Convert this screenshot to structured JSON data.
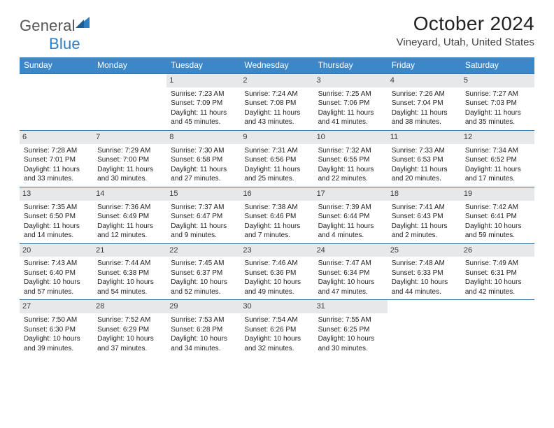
{
  "brand": {
    "name_gray": "General",
    "name_blue": "Blue"
  },
  "title": {
    "month": "October 2024",
    "location": "Vineyard, Utah, United States"
  },
  "colors": {
    "header_bg": "#3b87c8",
    "header_text": "#ffffff",
    "row_border": "#3b6f9b",
    "daynum_bg": "#e7e8e9",
    "brand_gray": "#555555",
    "brand_blue": "#2f7ec0"
  },
  "weekdays": [
    "Sunday",
    "Monday",
    "Tuesday",
    "Wednesday",
    "Thursday",
    "Friday",
    "Saturday"
  ],
  "rows": [
    [
      {
        "day": "",
        "lines": []
      },
      {
        "day": "",
        "lines": []
      },
      {
        "day": "1",
        "lines": [
          "Sunrise: 7:23 AM",
          "Sunset: 7:09 PM",
          "Daylight: 11 hours and 45 minutes."
        ]
      },
      {
        "day": "2",
        "lines": [
          "Sunrise: 7:24 AM",
          "Sunset: 7:08 PM",
          "Daylight: 11 hours and 43 minutes."
        ]
      },
      {
        "day": "3",
        "lines": [
          "Sunrise: 7:25 AM",
          "Sunset: 7:06 PM",
          "Daylight: 11 hours and 41 minutes."
        ]
      },
      {
        "day": "4",
        "lines": [
          "Sunrise: 7:26 AM",
          "Sunset: 7:04 PM",
          "Daylight: 11 hours and 38 minutes."
        ]
      },
      {
        "day": "5",
        "lines": [
          "Sunrise: 7:27 AM",
          "Sunset: 7:03 PM",
          "Daylight: 11 hours and 35 minutes."
        ]
      }
    ],
    [
      {
        "day": "6",
        "lines": [
          "Sunrise: 7:28 AM",
          "Sunset: 7:01 PM",
          "Daylight: 11 hours and 33 minutes."
        ]
      },
      {
        "day": "7",
        "lines": [
          "Sunrise: 7:29 AM",
          "Sunset: 7:00 PM",
          "Daylight: 11 hours and 30 minutes."
        ]
      },
      {
        "day": "8",
        "lines": [
          "Sunrise: 7:30 AM",
          "Sunset: 6:58 PM",
          "Daylight: 11 hours and 27 minutes."
        ]
      },
      {
        "day": "9",
        "lines": [
          "Sunrise: 7:31 AM",
          "Sunset: 6:56 PM",
          "Daylight: 11 hours and 25 minutes."
        ]
      },
      {
        "day": "10",
        "lines": [
          "Sunrise: 7:32 AM",
          "Sunset: 6:55 PM",
          "Daylight: 11 hours and 22 minutes."
        ]
      },
      {
        "day": "11",
        "lines": [
          "Sunrise: 7:33 AM",
          "Sunset: 6:53 PM",
          "Daylight: 11 hours and 20 minutes."
        ]
      },
      {
        "day": "12",
        "lines": [
          "Sunrise: 7:34 AM",
          "Sunset: 6:52 PM",
          "Daylight: 11 hours and 17 minutes."
        ]
      }
    ],
    [
      {
        "day": "13",
        "lines": [
          "Sunrise: 7:35 AM",
          "Sunset: 6:50 PM",
          "Daylight: 11 hours and 14 minutes."
        ]
      },
      {
        "day": "14",
        "lines": [
          "Sunrise: 7:36 AM",
          "Sunset: 6:49 PM",
          "Daylight: 11 hours and 12 minutes."
        ]
      },
      {
        "day": "15",
        "lines": [
          "Sunrise: 7:37 AM",
          "Sunset: 6:47 PM",
          "Daylight: 11 hours and 9 minutes."
        ]
      },
      {
        "day": "16",
        "lines": [
          "Sunrise: 7:38 AM",
          "Sunset: 6:46 PM",
          "Daylight: 11 hours and 7 minutes."
        ]
      },
      {
        "day": "17",
        "lines": [
          "Sunrise: 7:39 AM",
          "Sunset: 6:44 PM",
          "Daylight: 11 hours and 4 minutes."
        ]
      },
      {
        "day": "18",
        "lines": [
          "Sunrise: 7:41 AM",
          "Sunset: 6:43 PM",
          "Daylight: 11 hours and 2 minutes."
        ]
      },
      {
        "day": "19",
        "lines": [
          "Sunrise: 7:42 AM",
          "Sunset: 6:41 PM",
          "Daylight: 10 hours and 59 minutes."
        ]
      }
    ],
    [
      {
        "day": "20",
        "lines": [
          "Sunrise: 7:43 AM",
          "Sunset: 6:40 PM",
          "Daylight: 10 hours and 57 minutes."
        ]
      },
      {
        "day": "21",
        "lines": [
          "Sunrise: 7:44 AM",
          "Sunset: 6:38 PM",
          "Daylight: 10 hours and 54 minutes."
        ]
      },
      {
        "day": "22",
        "lines": [
          "Sunrise: 7:45 AM",
          "Sunset: 6:37 PM",
          "Daylight: 10 hours and 52 minutes."
        ]
      },
      {
        "day": "23",
        "lines": [
          "Sunrise: 7:46 AM",
          "Sunset: 6:36 PM",
          "Daylight: 10 hours and 49 minutes."
        ]
      },
      {
        "day": "24",
        "lines": [
          "Sunrise: 7:47 AM",
          "Sunset: 6:34 PM",
          "Daylight: 10 hours and 47 minutes."
        ]
      },
      {
        "day": "25",
        "lines": [
          "Sunrise: 7:48 AM",
          "Sunset: 6:33 PM",
          "Daylight: 10 hours and 44 minutes."
        ]
      },
      {
        "day": "26",
        "lines": [
          "Sunrise: 7:49 AM",
          "Sunset: 6:31 PM",
          "Daylight: 10 hours and 42 minutes."
        ]
      }
    ],
    [
      {
        "day": "27",
        "lines": [
          "Sunrise: 7:50 AM",
          "Sunset: 6:30 PM",
          "Daylight: 10 hours and 39 minutes."
        ]
      },
      {
        "day": "28",
        "lines": [
          "Sunrise: 7:52 AM",
          "Sunset: 6:29 PM",
          "Daylight: 10 hours and 37 minutes."
        ]
      },
      {
        "day": "29",
        "lines": [
          "Sunrise: 7:53 AM",
          "Sunset: 6:28 PM",
          "Daylight: 10 hours and 34 minutes."
        ]
      },
      {
        "day": "30",
        "lines": [
          "Sunrise: 7:54 AM",
          "Sunset: 6:26 PM",
          "Daylight: 10 hours and 32 minutes."
        ]
      },
      {
        "day": "31",
        "lines": [
          "Sunrise: 7:55 AM",
          "Sunset: 6:25 PM",
          "Daylight: 10 hours and 30 minutes."
        ]
      },
      {
        "day": "",
        "lines": []
      },
      {
        "day": "",
        "lines": []
      }
    ]
  ]
}
